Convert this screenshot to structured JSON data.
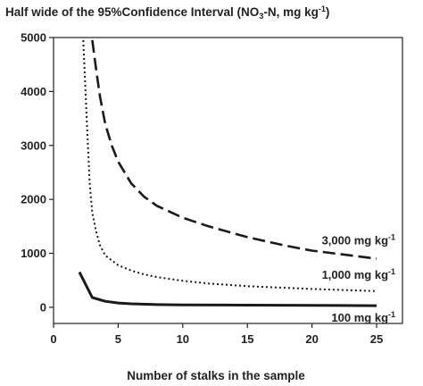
{
  "chart_data": {
    "type": "line",
    "title": "Half wide of the 95%Confidence Interval (NO3-N, mg kg-1)",
    "title_parts": {
      "before": "Half wide of the 95%Confidence Interval (NO",
      "sub": "3",
      "middle": "-N, mg kg",
      "sup": "-1",
      "after": ")"
    },
    "xlabel": "Number of stalks in the sample",
    "ylabel": "",
    "xlim": [
      0,
      27
    ],
    "ylim": [
      -300,
      5000
    ],
    "x_ticks": [
      0,
      5,
      10,
      15,
      20,
      25
    ],
    "y_ticks": [
      0,
      1000,
      2000,
      3000,
      4000,
      5000
    ],
    "grid": false,
    "legend": "inline labels at right end of each line",
    "series": [
      {
        "name": "3,000 mg kg-1",
        "label_main": "3,000 mg kg",
        "label_sup": "-1",
        "style": "dashed",
        "x": [
          3,
          3.3,
          3.6,
          4,
          4.5,
          5,
          6,
          7,
          8,
          10,
          12,
          15,
          18,
          20,
          22,
          25
        ],
        "y": [
          4950,
          4400,
          3900,
          3400,
          3000,
          2700,
          2300,
          2050,
          1880,
          1660,
          1500,
          1300,
          1140,
          1050,
          990,
          900
        ]
      },
      {
        "name": "1,000 mg kg-1",
        "label_main": "1,000 mg kg",
        "label_sup": "-1",
        "style": "dotted",
        "x": [
          2.3,
          2.6,
          2.8,
          3,
          3.3,
          3.6,
          4,
          5,
          6,
          7,
          8,
          10,
          12,
          15,
          20,
          25
        ],
        "y": [
          4950,
          3300,
          2300,
          1750,
          1400,
          1150,
          960,
          780,
          680,
          610,
          560,
          490,
          440,
          390,
          340,
          300
        ]
      },
      {
        "name": "100 mg kg-1",
        "label_main": "100 mg kg",
        "label_sup": "-1",
        "style": "solid",
        "x": [
          2,
          3,
          4,
          5,
          6,
          8,
          10,
          15,
          20,
          25
        ],
        "y": [
          650,
          180,
          110,
          80,
          65,
          50,
          45,
          40,
          35,
          30
        ]
      }
    ]
  }
}
